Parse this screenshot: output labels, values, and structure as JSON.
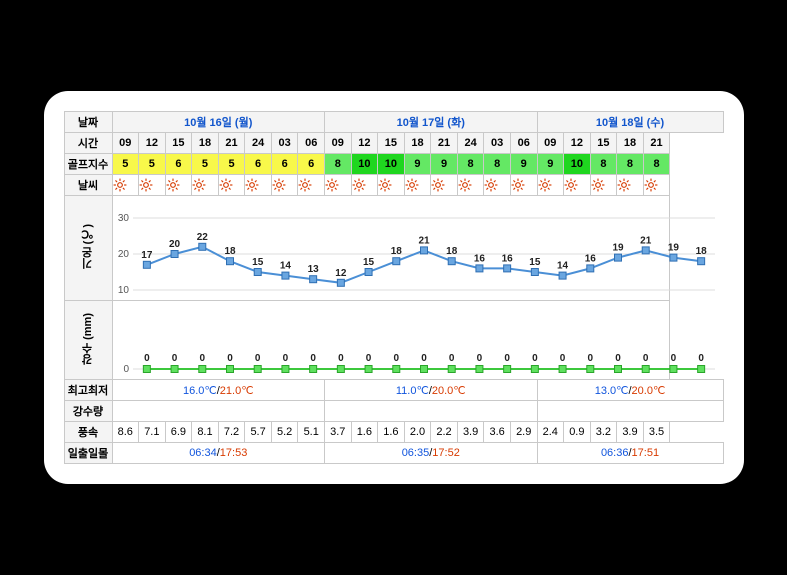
{
  "labels": {
    "date": "날짜",
    "time": "시간",
    "golf": "골프지수",
    "weather": "날씨",
    "temp_axis": "기온 (℃)",
    "precip_axis": "강수 (mm)",
    "hilo": "최고최저",
    "precip_total": "강수량",
    "wind": "풍속",
    "sunrise": "일출일몰"
  },
  "dates": [
    "10월 16일 (월)",
    "10월 17일 (화)",
    "10월 18일 (수)"
  ],
  "date_spans": [
    8,
    8,
    7
  ],
  "hours": [
    "09",
    "12",
    "15",
    "18",
    "21",
    "24",
    "03",
    "06",
    "09",
    "12",
    "15",
    "18",
    "21",
    "24",
    "03",
    "06",
    "09",
    "12",
    "15",
    "18",
    "21"
  ],
  "golf_index": {
    "values": [
      5,
      5,
      6,
      5,
      5,
      6,
      6,
      6,
      8,
      10,
      10,
      9,
      9,
      8,
      8,
      9,
      9,
      10,
      8,
      8,
      8
    ],
    "colors": [
      "#f8f84a",
      "#f8f84a",
      "#f8f84a",
      "#f8f84a",
      "#f8f84a",
      "#f8f84a",
      "#f8f84a",
      "#f8f84a",
      "#64e864",
      "#1fd61f",
      "#1fd61f",
      "#64e864",
      "#64e864",
      "#64e864",
      "#64e864",
      "#64e864",
      "#64e864",
      "#1fd61f",
      "#64e864",
      "#64e864",
      "#64e864"
    ]
  },
  "weather_icon": "sun",
  "temp_chart": {
    "type": "line",
    "values": [
      17,
      20,
      22,
      18,
      15,
      14,
      13,
      12,
      15,
      18,
      21,
      18,
      16,
      16,
      15,
      14,
      16,
      19,
      21,
      19,
      18
    ],
    "y_min": 10,
    "y_max": 30,
    "y_ticks": [
      10,
      20,
      30
    ],
    "line_color": "#4a8fd6",
    "marker_fill": "#6aa6e0",
    "marker_stroke": "#2f6fb3",
    "label_color": "#222",
    "grid_color": "#dcdcdc",
    "bg": "#ffffff",
    "label_fontsize": 10
  },
  "precip_chart": {
    "type": "line",
    "values": [
      0,
      0,
      0,
      0,
      0,
      0,
      0,
      0,
      0,
      0,
      0,
      0,
      0,
      0,
      0,
      0,
      0,
      0,
      0,
      0,
      0
    ],
    "y_min": 0,
    "y_max": 10,
    "y_ticks": [
      0
    ],
    "line_color": "#3cc83c",
    "marker_fill": "#5fe05f",
    "marker_stroke": "#2aa52a",
    "label_color": "#222",
    "grid_color": "#dcdcdc",
    "bg": "#ffffff",
    "label_fontsize": 10
  },
  "hilo": {
    "d0_hi": "16.0℃",
    "d0_lo": "21.0℃",
    "d1_hi": "11.0℃",
    "d1_lo": "20.0℃",
    "d2_hi": "13.0℃",
    "d2_lo": "20.0℃"
  },
  "wind": [
    "8.6",
    "7.1",
    "6.9",
    "8.1",
    "7.2",
    "5.7",
    "5.2",
    "5.1",
    "3.7",
    "1.6",
    "1.6",
    "2.0",
    "2.2",
    "3.9",
    "3.6",
    "2.9",
    "2.4",
    "0.9",
    "3.2",
    "3.9",
    "3.5"
  ],
  "sunrise": {
    "d0_rise": "06:34",
    "d0_set": "17:53",
    "d1_rise": "06:35",
    "d1_set": "17:52",
    "d2_rise": "06:36",
    "d2_set": "17:51"
  }
}
